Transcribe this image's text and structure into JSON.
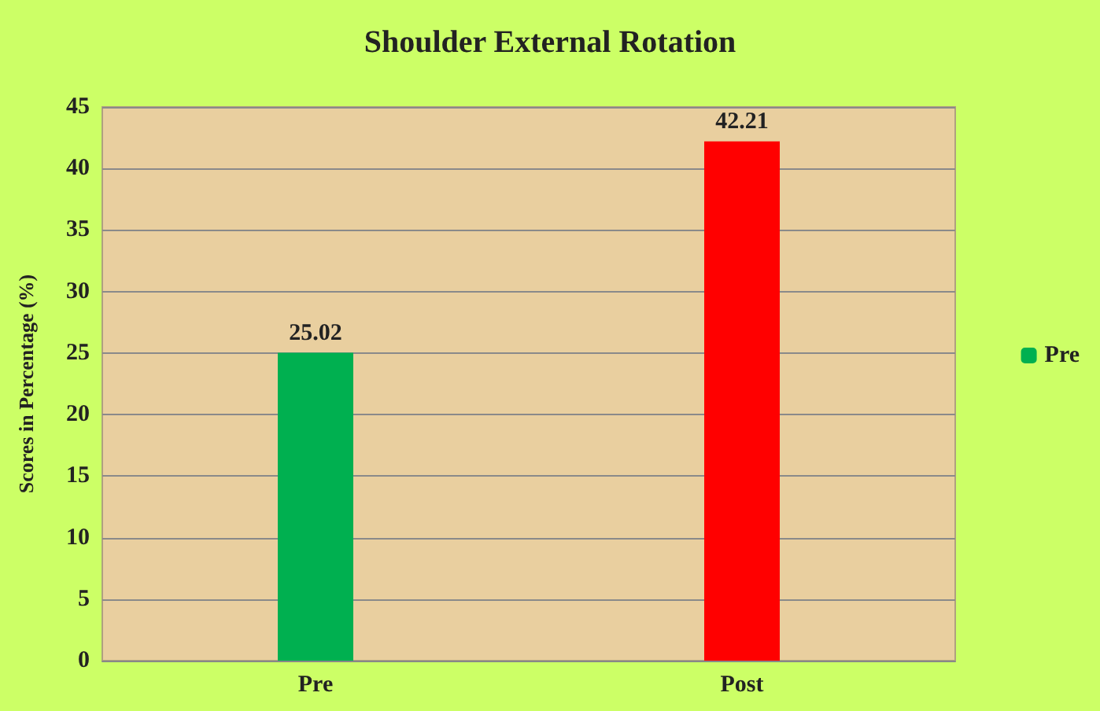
{
  "chart_data": {
    "type": "bar",
    "title": "Shoulder External Rotation",
    "ylabel": "Scores in Percentage (%)",
    "categories": [
      "Pre",
      "Post"
    ],
    "series": [
      {
        "name": "Pre",
        "color": "#00b050",
        "colors": [
          "#00b050",
          "#ff0000"
        ],
        "values": [
          25.02,
          42.21
        ]
      }
    ],
    "ylim": [
      0,
      45
    ],
    "yticks": [
      0,
      5,
      10,
      15,
      20,
      25,
      30,
      35,
      40,
      45
    ],
    "grid": "y",
    "legend": "right",
    "data_labels": true
  }
}
